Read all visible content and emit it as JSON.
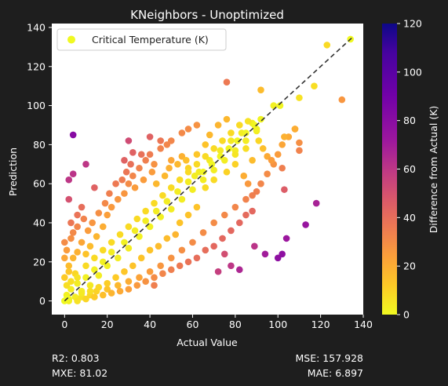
{
  "chart_data": {
    "type": "scatter",
    "title": "KNeighbors - Unoptimized",
    "xlabel": "Actual Value",
    "ylabel": "Prediction",
    "xlim": [
      -6,
      140
    ],
    "ylim": [
      -7,
      142
    ],
    "xticks": [
      0,
      20,
      40,
      60,
      80,
      100,
      120,
      140
    ],
    "yticks": [
      0,
      20,
      40,
      60,
      80,
      100,
      120,
      140
    ],
    "grid": false,
    "legend": {
      "placement": "top-left",
      "entries": [
        "Critical Temperature (K)"
      ]
    },
    "series": [
      {
        "name": "Critical Temperature (K)",
        "color_by": "absolute difference from actual",
        "points": [
          [
            0,
            0
          ],
          [
            1,
            3
          ],
          [
            2,
            1
          ],
          [
            3,
            6
          ],
          [
            5,
            2
          ],
          [
            6,
            9
          ],
          [
            8,
            5
          ],
          [
            10,
            12
          ],
          [
            12,
            8
          ],
          [
            14,
            16
          ],
          [
            16,
            13
          ],
          [
            18,
            20
          ],
          [
            20,
            18
          ],
          [
            22,
            25
          ],
          [
            25,
            22
          ],
          [
            28,
            30
          ],
          [
            30,
            27
          ],
          [
            33,
            36
          ],
          [
            35,
            33
          ],
          [
            38,
            41
          ],
          [
            40,
            38
          ],
          [
            43,
            46
          ],
          [
            45,
            43
          ],
          [
            48,
            51
          ],
          [
            50,
            47
          ],
          [
            53,
            56
          ],
          [
            55,
            52
          ],
          [
            58,
            61
          ],
          [
            60,
            57
          ],
          [
            63,
            66
          ],
          [
            65,
            62
          ],
          [
            68,
            72
          ],
          [
            70,
            67
          ],
          [
            73,
            77
          ],
          [
            75,
            72
          ],
          [
            78,
            82
          ],
          [
            80,
            77
          ],
          [
            83,
            86
          ],
          [
            85,
            82
          ],
          [
            88,
            91
          ],
          [
            90,
            87
          ],
          [
            92,
            93
          ],
          [
            3,
            10
          ],
          [
            5,
            14
          ],
          [
            2,
            18
          ],
          [
            4,
            22
          ],
          [
            1,
            26
          ],
          [
            6,
            25
          ],
          [
            3,
            32
          ],
          [
            8,
            30
          ],
          [
            10,
            24
          ],
          [
            12,
            28
          ],
          [
            15,
            33
          ],
          [
            18,
            38
          ],
          [
            20,
            44
          ],
          [
            22,
            48
          ],
          [
            25,
            52
          ],
          [
            28,
            55
          ],
          [
            30,
            60
          ],
          [
            32,
            64
          ],
          [
            35,
            68
          ],
          [
            38,
            72
          ],
          [
            40,
            75
          ],
          [
            42,
            70
          ],
          [
            45,
            78
          ],
          [
            48,
            80
          ],
          [
            50,
            82
          ],
          [
            55,
            86
          ],
          [
            58,
            88
          ],
          [
            62,
            90
          ],
          [
            8,
            2
          ],
          [
            12,
            3
          ],
          [
            15,
            5
          ],
          [
            20,
            6
          ],
          [
            25,
            8
          ],
          [
            30,
            10
          ],
          [
            35,
            12
          ],
          [
            40,
            15
          ],
          [
            45,
            18
          ],
          [
            50,
            22
          ],
          [
            55,
            26
          ],
          [
            60,
            30
          ],
          [
            65,
            35
          ],
          [
            70,
            40
          ],
          [
            75,
            44
          ],
          [
            80,
            48
          ],
          [
            85,
            52
          ],
          [
            90,
            56
          ],
          [
            92,
            60
          ],
          [
            95,
            65
          ],
          [
            98,
            70
          ],
          [
            100,
            75
          ],
          [
            102,
            80
          ],
          [
            105,
            84
          ],
          [
            108,
            88
          ],
          [
            110,
            77
          ],
          [
            102,
            68
          ],
          [
            103,
            57
          ],
          [
            4,
            85
          ],
          [
            4,
            65
          ],
          [
            2,
            62
          ],
          [
            10,
            70
          ],
          [
            14,
            58
          ],
          [
            76,
            112
          ],
          [
            92,
            108
          ],
          [
            98,
            100
          ],
          [
            101,
            100
          ],
          [
            110,
            104
          ],
          [
            117,
            110
          ],
          [
            123,
            131
          ],
          [
            134,
            134
          ],
          [
            130,
            103
          ],
          [
            103,
            84
          ],
          [
            110,
            81
          ],
          [
            108,
            88
          ],
          [
            118,
            50
          ],
          [
            113,
            39
          ],
          [
            104,
            32
          ],
          [
            102,
            24
          ],
          [
            100,
            22
          ],
          [
            94,
            24
          ],
          [
            89,
            28
          ],
          [
            82,
            16
          ],
          [
            72,
            15
          ],
          [
            78,
            18
          ],
          [
            75,
            24
          ],
          [
            42,
            8
          ],
          [
            30,
            82
          ],
          [
            32,
            76
          ],
          [
            28,
            72
          ],
          [
            36,
            75
          ],
          [
            40,
            84
          ],
          [
            45,
            82
          ],
          [
            50,
            72
          ],
          [
            55,
            74
          ],
          [
            58,
            68
          ],
          [
            62,
            75
          ],
          [
            66,
            80
          ],
          [
            68,
            85
          ],
          [
            72,
            90
          ],
          [
            76,
            93
          ],
          [
            80,
            75
          ],
          [
            84,
            64
          ],
          [
            86,
            60
          ],
          [
            88,
            54
          ],
          [
            88,
            72
          ],
          [
            85,
            78
          ],
          [
            80,
            70
          ],
          [
            76,
            66
          ],
          [
            70,
            62
          ],
          [
            66,
            58
          ],
          [
            62,
            48
          ],
          [
            58,
            44
          ],
          [
            54,
            40
          ],
          [
            52,
            34
          ],
          [
            48,
            32
          ],
          [
            44,
            28
          ],
          [
            40,
            26
          ],
          [
            36,
            22
          ],
          [
            32,
            18
          ],
          [
            28,
            15
          ],
          [
            24,
            12
          ],
          [
            20,
            9
          ],
          [
            16,
            7
          ],
          [
            12,
            5
          ],
          [
            8,
            4
          ],
          [
            6,
            12
          ],
          [
            10,
            18
          ],
          [
            14,
            22
          ],
          [
            18,
            26
          ],
          [
            22,
            30
          ],
          [
            26,
            34
          ],
          [
            30,
            38
          ],
          [
            34,
            42
          ],
          [
            38,
            46
          ],
          [
            42,
            50
          ],
          [
            46,
            54
          ],
          [
            50,
            58
          ],
          [
            54,
            62
          ],
          [
            58,
            66
          ],
          [
            62,
            70
          ],
          [
            66,
            74
          ],
          [
            70,
            78
          ],
          [
            74,
            82
          ],
          [
            78,
            86
          ],
          [
            82,
            90
          ],
          [
            86,
            92
          ],
          [
            90,
            88
          ],
          [
            3,
            40
          ],
          [
            6,
            44
          ],
          [
            8,
            48
          ],
          [
            2,
            52
          ],
          [
            0,
            30
          ],
          [
            0,
            22
          ],
          [
            0,
            12
          ],
          [
            1,
            8
          ],
          [
            2,
            15
          ],
          [
            4,
            35
          ],
          [
            6,
            38
          ],
          [
            9,
            42
          ],
          [
            11,
            36
          ],
          [
            13,
            40
          ],
          [
            16,
            45
          ],
          [
            19,
            50
          ],
          [
            21,
            55
          ],
          [
            24,
            60
          ],
          [
            27,
            62
          ],
          [
            29,
            66
          ],
          [
            31,
            70
          ],
          [
            33,
            58
          ],
          [
            37,
            62
          ],
          [
            41,
            66
          ],
          [
            43,
            60
          ],
          [
            47,
            64
          ],
          [
            49,
            68
          ],
          [
            53,
            70
          ],
          [
            57,
            72
          ],
          [
            61,
            64
          ],
          [
            65,
            66
          ],
          [
            69,
            70
          ],
          [
            73,
            74
          ],
          [
            77,
            78
          ],
          [
            81,
            82
          ],
          [
            85,
            86
          ],
          [
            89,
            90
          ],
          [
            91,
            82
          ],
          [
            93,
            78
          ],
          [
            95,
            74
          ],
          [
            97,
            72
          ],
          [
            88,
            46
          ],
          [
            85,
            44
          ],
          [
            82,
            40
          ],
          [
            78,
            36
          ],
          [
            74,
            32
          ],
          [
            70,
            28
          ],
          [
            66,
            26
          ],
          [
            62,
            22
          ],
          [
            58,
            20
          ],
          [
            54,
            18
          ],
          [
            50,
            16
          ],
          [
            46,
            14
          ],
          [
            42,
            12
          ],
          [
            38,
            10
          ],
          [
            34,
            8
          ],
          [
            30,
            6
          ],
          [
            26,
            5
          ],
          [
            22,
            4
          ],
          [
            18,
            3
          ],
          [
            14,
            2
          ],
          [
            10,
            1
          ],
          [
            6,
            0
          ],
          [
            2,
            0
          ],
          [
            1,
            1
          ]
        ]
      }
    ],
    "reference_line": {
      "style": "dashed",
      "from": [
        0,
        0
      ],
      "to": [
        135,
        135
      ]
    },
    "colorbar": {
      "label": "Difference from Actual (K)",
      "range": [
        0,
        120
      ],
      "ticks": [
        0,
        20,
        40,
        60,
        80,
        100,
        120
      ],
      "colormap": "plasma_r"
    }
  },
  "metrics": {
    "r2": "R2: 0.803",
    "mxe": "MXE: 81.02",
    "mse": "MSE: 157.928",
    "mae": "MAE: 6.897"
  },
  "colors": {
    "page_background": "#1e1e1e",
    "plot_background": "#ffffff",
    "reference_line": "#333333",
    "legend_marker": "#f0f921"
  }
}
